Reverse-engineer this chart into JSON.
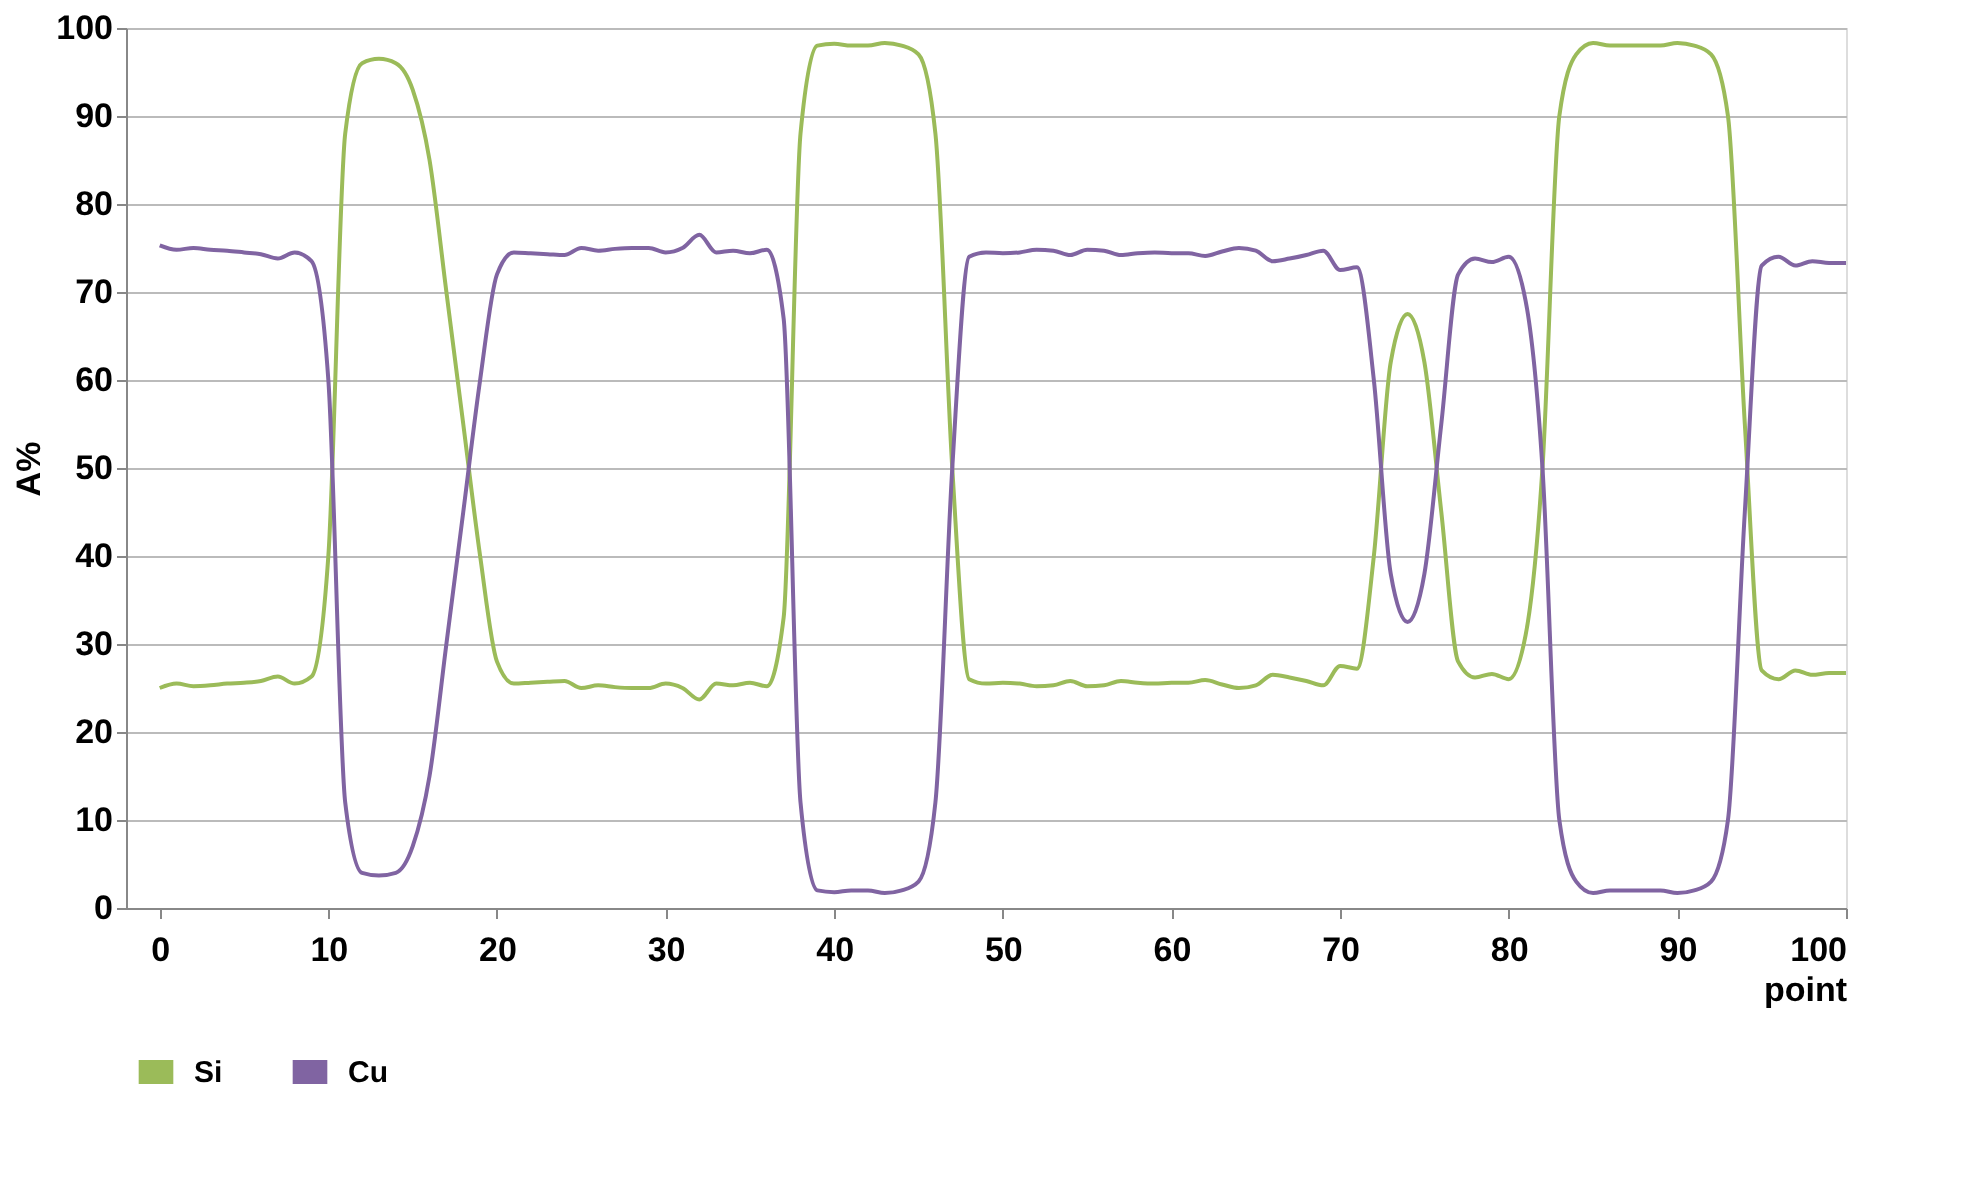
{
  "chart_data": {
    "type": "line",
    "xlabel": "point",
    "ylabel": "A%",
    "x": [
      0,
      1,
      2,
      3,
      4,
      5,
      6,
      7,
      8,
      9,
      10,
      11,
      12,
      13,
      14,
      15,
      16,
      17,
      18,
      19,
      20,
      21,
      22,
      23,
      24,
      25,
      26,
      27,
      28,
      29,
      30,
      31,
      32,
      33,
      34,
      35,
      36,
      37,
      38,
      39,
      40,
      41,
      42,
      43,
      44,
      45,
      46,
      47,
      48,
      49,
      50,
      51,
      52,
      53,
      54,
      55,
      56,
      57,
      58,
      59,
      60,
      61,
      62,
      63,
      64,
      65,
      66,
      67,
      68,
      69,
      70,
      71,
      72,
      73,
      74,
      75,
      76,
      77,
      78,
      79,
      80,
      81,
      82,
      83,
      84,
      85,
      86,
      87,
      88,
      89,
      90,
      91,
      92,
      93,
      94,
      95,
      96,
      97,
      98,
      99,
      100
    ],
    "series": [
      {
        "name": "Si",
        "color": "#9bbb59",
        "values": [
          25,
          25.5,
          25.2,
          25.3,
          25.5,
          25.6,
          25.8,
          26.3,
          25.5,
          26.3,
          40,
          88,
          96,
          96.5,
          96,
          93,
          85,
          70,
          55,
          40,
          28,
          25.5,
          25.6,
          25.7,
          25.8,
          25,
          25.3,
          25.1,
          25,
          25,
          25.5,
          25,
          23.7,
          25.5,
          25.3,
          25.6,
          25.2,
          33,
          88,
          98,
          98.2,
          98,
          98,
          98.3,
          98,
          97,
          88,
          50,
          26,
          25.5,
          25.6,
          25.5,
          25.2,
          25.3,
          25.8,
          25.2,
          25.3,
          25.8,
          25.6,
          25.5,
          25.6,
          25.6,
          25.9,
          25.4,
          25,
          25.3,
          26.5,
          26.2,
          25.8,
          25.3,
          27.5,
          27.2,
          40,
          62,
          67.5,
          62,
          45,
          28,
          26.2,
          26.6,
          26,
          31,
          50,
          90,
          97,
          98.3,
          98,
          98,
          98,
          98,
          98.3,
          98,
          97,
          90,
          55,
          27,
          26,
          27,
          26.5,
          26.7,
          26.7
        ]
      },
      {
        "name": "Cu",
        "color": "#8064a2",
        "values": [
          75.3,
          74.8,
          75,
          74.8,
          74.7,
          74.5,
          74.3,
          73.8,
          74.5,
          73.5,
          60,
          12,
          4,
          3.7,
          4,
          7,
          15,
          30,
          45,
          60,
          72,
          74.5,
          74.4,
          74.3,
          74.2,
          75,
          74.7,
          74.9,
          75,
          75,
          74.5,
          75,
          76.5,
          74.5,
          74.7,
          74.4,
          74.8,
          67,
          12,
          2,
          1.8,
          2,
          2,
          1.7,
          2,
          3,
          12,
          50,
          74,
          74.5,
          74.4,
          74.5,
          74.8,
          74.7,
          74.2,
          74.8,
          74.7,
          74.2,
          74.4,
          74.5,
          74.4,
          74.4,
          74.1,
          74.6,
          75,
          74.7,
          73.5,
          73.8,
          74.2,
          74.7,
          72.5,
          72.8,
          60,
          38,
          32.5,
          38,
          55,
          72,
          73.8,
          73.4,
          74,
          69,
          50,
          10,
          3,
          1.7,
          2,
          2,
          2,
          2,
          1.7,
          2,
          3,
          10,
          45,
          73,
          74,
          73,
          73.5,
          73.3,
          73.3
        ]
      }
    ],
    "xlim": [
      -2,
      100
    ],
    "xticks": [
      0,
      10,
      20,
      30,
      40,
      50,
      60,
      70,
      80,
      90,
      100
    ],
    "ylim": [
      0,
      100
    ],
    "yticks": [
      0,
      10,
      20,
      30,
      40,
      50,
      60,
      70,
      80,
      90,
      100
    ],
    "grid": "y",
    "legend": "bottom",
    "marker": "none",
    "line_style": "solid"
  }
}
